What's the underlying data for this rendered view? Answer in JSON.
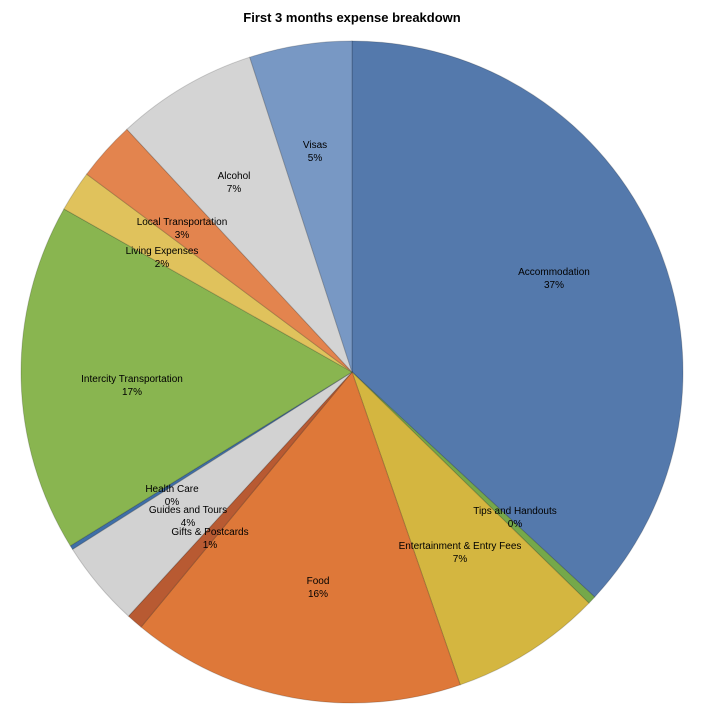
{
  "chart_data": {
    "type": "pie",
    "title": "First 3 months expense breakdown",
    "slices": [
      {
        "label": "Accommodation",
        "percent_label": "37%",
        "value": 36.9,
        "color": "#5479ac"
      },
      {
        "label": "Tips and Handouts",
        "percent_label": "0%",
        "value": 0.4,
        "color": "#75a84a"
      },
      {
        "label": "Entertainment & Entry Fees",
        "percent_label": "7%",
        "value": 7.4,
        "color": "#d4b640"
      },
      {
        "label": "Food",
        "percent_label": "16%",
        "value": 16.3,
        "color": "#de7839"
      },
      {
        "label": "Gifts & Postcards",
        "percent_label": "1%",
        "value": 0.8,
        "color": "#b85a32"
      },
      {
        "label": "Guides and Tours",
        "percent_label": "4%",
        "value": 4.2,
        "color": "#d2d2d2"
      },
      {
        "label": "Health Care",
        "percent_label": "0%",
        "value": 0.2,
        "color": "#3f6fa8"
      },
      {
        "label": "Intercity Transportation",
        "percent_label": "17%",
        "value": 17.0,
        "color": "#89b550"
      },
      {
        "label": "Living Expenses",
        "percent_label": "2%",
        "value": 2.0,
        "color": "#e0c25c"
      },
      {
        "label": "Local Transportation",
        "percent_label": "3%",
        "value": 2.9,
        "color": "#e3844e"
      },
      {
        "label": "Alcohol",
        "percent_label": "7%",
        "value": 6.9,
        "color": "#d4d4d4"
      },
      {
        "label": "Visas",
        "percent_label": "5%",
        "value": 5.0,
        "color": "#7898c4"
      }
    ]
  }
}
